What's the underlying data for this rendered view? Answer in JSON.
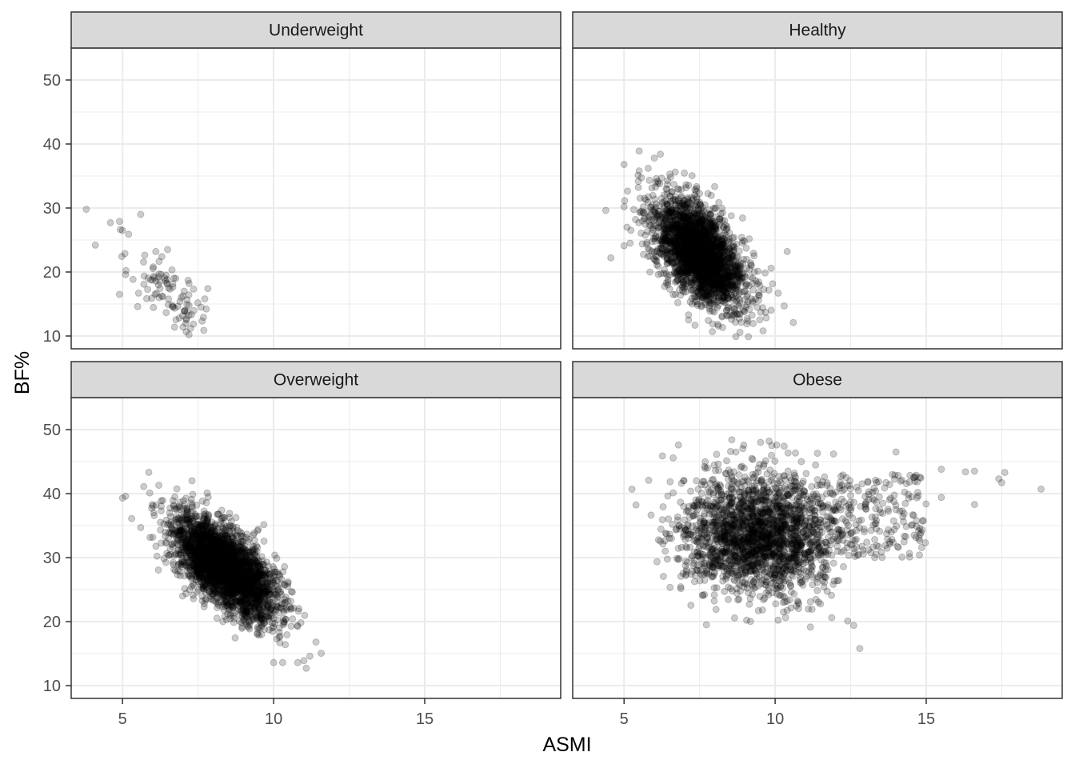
{
  "chart_data": {
    "type": "scatter",
    "layout": "facet-grid 2x2",
    "xlabel": "ASMI",
    "ylabel": "BF%",
    "xlim": [
      3.3,
      19.5
    ],
    "ylim": [
      8,
      55
    ],
    "x_ticks": [
      5,
      10,
      15
    ],
    "y_ticks": [
      10,
      20,
      30,
      40,
      50
    ],
    "grid": true,
    "point_color": "#000000",
    "point_alpha": 0.2,
    "panel_border_color": "#333333",
    "strip_fill": "#d9d9d9",
    "grid_color": "#ebebeb",
    "facets": [
      {
        "label": "Underweight",
        "n_points": 90,
        "cloud": {
          "mean_x": 6.5,
          "mean_y": 17.0,
          "sd_x": 0.65,
          "sd_y": 3.2,
          "corr": -0.6
        },
        "points": [
          [
            3.8,
            29.8
          ],
          [
            4.1,
            24.2
          ],
          [
            4.6,
            27.7
          ],
          [
            4.9,
            27.9
          ],
          [
            5.0,
            26.5
          ],
          [
            5.2,
            25.9
          ],
          [
            5.6,
            29.0
          ],
          [
            4.9,
            16.5
          ],
          [
            5.1,
            19.6
          ],
          [
            5.5,
            14.6
          ],
          [
            7.2,
            10.2
          ],
          [
            7.0,
            11.4
          ],
          [
            7.6,
            14.5
          ],
          [
            7.2,
            18.2
          ],
          [
            6.1,
            23.2
          ],
          [
            6.3,
            22.4
          ]
        ]
      },
      {
        "label": "Healthy",
        "n_points": 2600,
        "cloud": {
          "mean_x": 7.5,
          "mean_y": 23.0,
          "sd_x": 0.75,
          "sd_y": 4.3,
          "corr": -0.55
        },
        "points": [
          [
            5.0,
            36.8
          ],
          [
            5.5,
            38.9
          ],
          [
            6.0,
            37.8
          ],
          [
            6.2,
            38.4
          ],
          [
            5.0,
            24.1
          ],
          [
            5.2,
            24.5
          ],
          [
            5.0,
            30.2
          ],
          [
            10.4,
            23.2
          ],
          [
            10.6,
            12.1
          ],
          [
            9.6,
            10.8
          ],
          [
            8.7,
            9.9
          ],
          [
            10.3,
            14.7
          ],
          [
            10.1,
            16.7
          ],
          [
            5.5,
            35.8
          ],
          [
            5.8,
            36.2
          ]
        ]
      },
      {
        "label": "Overweight",
        "n_points": 3000,
        "cloud": {
          "mean_x": 8.4,
          "mean_y": 28.5,
          "sd_x": 0.85,
          "sd_y": 3.9,
          "corr": -0.65
        },
        "points": [
          [
            5.0,
            39.3
          ],
          [
            5.1,
            39.6
          ],
          [
            5.3,
            36.1
          ],
          [
            5.7,
            41.1
          ],
          [
            5.9,
            40.1
          ],
          [
            6.2,
            41.3
          ],
          [
            7.3,
            42.0
          ],
          [
            7.8,
            40.1
          ],
          [
            5.6,
            34.7
          ],
          [
            9.2,
            19.5
          ],
          [
            10.0,
            13.6
          ],
          [
            10.3,
            13.6
          ],
          [
            10.8,
            13.6
          ],
          [
            11.0,
            13.9
          ],
          [
            11.4,
            16.8
          ],
          [
            11.2,
            14.6
          ]
        ]
      },
      {
        "label": "Obese",
        "n_points": 2400,
        "cloud": {
          "mean_x": 9.3,
          "mean_y": 33.5,
          "sd_x": 1.25,
          "sd_y": 4.6,
          "corr": -0.1
        },
        "points": [
          [
            6.8,
            47.6
          ],
          [
            9.8,
            48.2
          ],
          [
            10.3,
            47.4
          ],
          [
            11.4,
            46.3
          ],
          [
            14.0,
            46.5
          ],
          [
            6.6,
            35.2
          ],
          [
            6.9,
            41.6
          ],
          [
            12.8,
            15.8
          ],
          [
            12.6,
            19.4
          ],
          [
            12.4,
            20.1
          ],
          [
            15.5,
            43.8
          ],
          [
            16.3,
            43.4
          ],
          [
            16.6,
            43.5
          ],
          [
            17.4,
            42.3
          ],
          [
            17.5,
            41.7
          ],
          [
            17.6,
            43.3
          ],
          [
            18.8,
            40.7
          ],
          [
            16.6,
            38.3
          ],
          [
            15.5,
            39.4
          ],
          [
            14.9,
            35.8
          ]
        ]
      }
    ]
  }
}
